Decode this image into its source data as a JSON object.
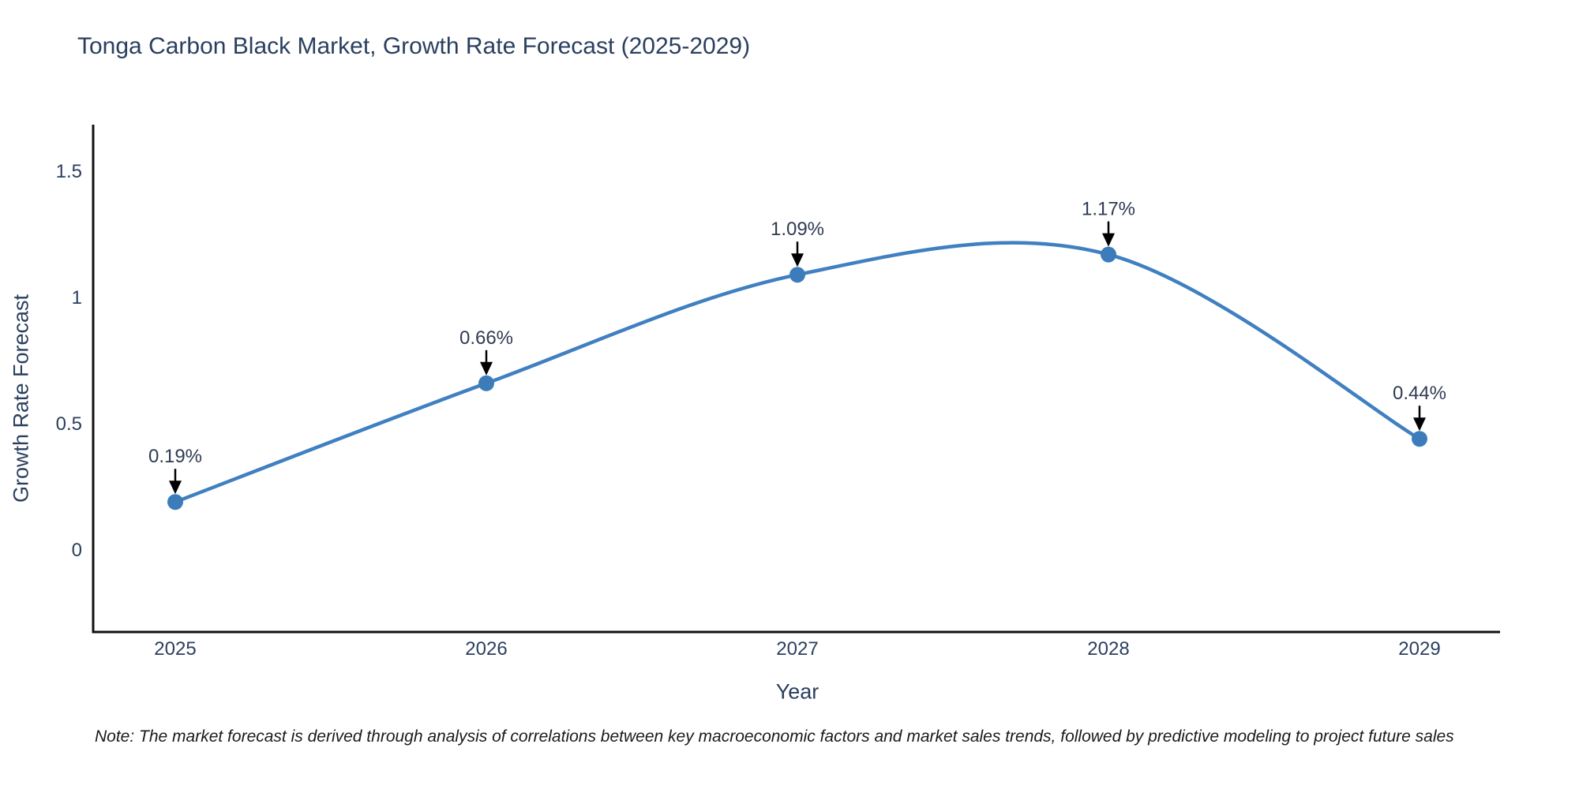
{
  "page": {
    "background": "#ffffff"
  },
  "header": {
    "title": "Tonga Carbon Black Market, Growth Rate Forecast (2025-2029)"
  },
  "footnote": "Note: The market forecast is derived through analysis of correlations between key macroeconomic factors and market sales trends, followed by predictive modeling to project future sales",
  "chart_data": {
    "type": "line",
    "title": "Tonga Carbon Black Market, Growth Rate Forecast (2025-2029)",
    "xlabel": "Year",
    "ylabel": "Growth Rate Forecast",
    "categories": [
      "2025",
      "2026",
      "2027",
      "2028",
      "2029"
    ],
    "series": [
      {
        "name": "Growth Rate Forecast",
        "values": [
          0.19,
          0.66,
          1.09,
          1.17,
          0.44
        ]
      }
    ],
    "point_labels": [
      "0.19%",
      "0.66%",
      "1.09%",
      "1.17%",
      "0.44%"
    ],
    "yticks": [
      0,
      0.5,
      1,
      1.5
    ],
    "ytick_labels": [
      "0",
      "0.5",
      "1",
      "1.5"
    ],
    "ylim": [
      -0.33,
      1.68
    ],
    "line_shape": "spline",
    "grid": false,
    "legend_position": "none",
    "colors": {
      "line": "#4080c0",
      "marker": "#3d7cba",
      "axis": "#111111",
      "tick_text": "#2a3f5f",
      "annotation_text": "#2f3b52",
      "annotation_arrow": "#000000"
    }
  }
}
